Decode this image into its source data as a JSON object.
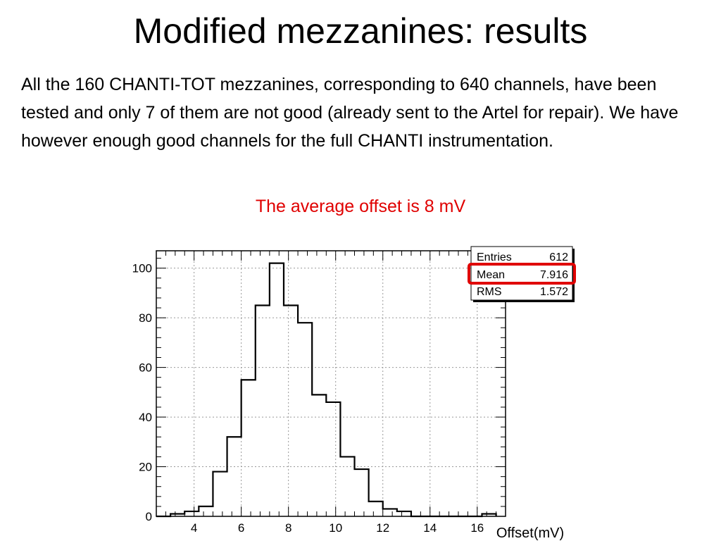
{
  "slide": {
    "title": "Modified mezzanines: results",
    "body": "All the 160 CHANTI-TOT mezzanines, corresponding to 640 channels, have been tested and only 7 of them are not good (already sent to the Artel for repair). We have however enough good channels for the full CHANTI instrumentation.",
    "highlight": "The average offset is 8 mV"
  },
  "colors": {
    "highlight_text": "#e00000",
    "mean_box": "#e00000",
    "histogram_line": "#000000",
    "grid": "#999999"
  },
  "chart_data": {
    "type": "bar",
    "style": "step-histogram",
    "xlabel": "Offset(mV)",
    "ylabel": "",
    "xlim": [
      2.4,
      17.2
    ],
    "ylim": [
      0,
      107
    ],
    "grid": true,
    "x_ticks": [
      4,
      6,
      8,
      10,
      12,
      14,
      16
    ],
    "y_ticks": [
      0,
      20,
      40,
      60,
      80,
      100
    ],
    "bin_width": 0.6,
    "bin_edges": [
      2.4,
      3.0,
      3.6,
      4.2,
      4.8,
      5.4,
      6.0,
      6.6,
      7.2,
      7.8,
      8.4,
      9.0,
      9.6,
      10.2,
      10.8,
      11.4,
      12.0,
      12.6,
      13.2,
      13.8,
      14.4,
      15.0,
      15.6,
      16.2,
      16.8
    ],
    "values": [
      0,
      1,
      2,
      4,
      18,
      32,
      55,
      85,
      102,
      85,
      78,
      49,
      46,
      24,
      19,
      6,
      3,
      2,
      0,
      0,
      0,
      0,
      0,
      1
    ],
    "stats_box": {
      "position": "top-right",
      "rows": [
        {
          "label": "Entries",
          "value": "612"
        },
        {
          "label": "Mean",
          "value": "7.916",
          "highlighted": true
        },
        {
          "label": "RMS",
          "value": "1.572"
        }
      ]
    }
  }
}
